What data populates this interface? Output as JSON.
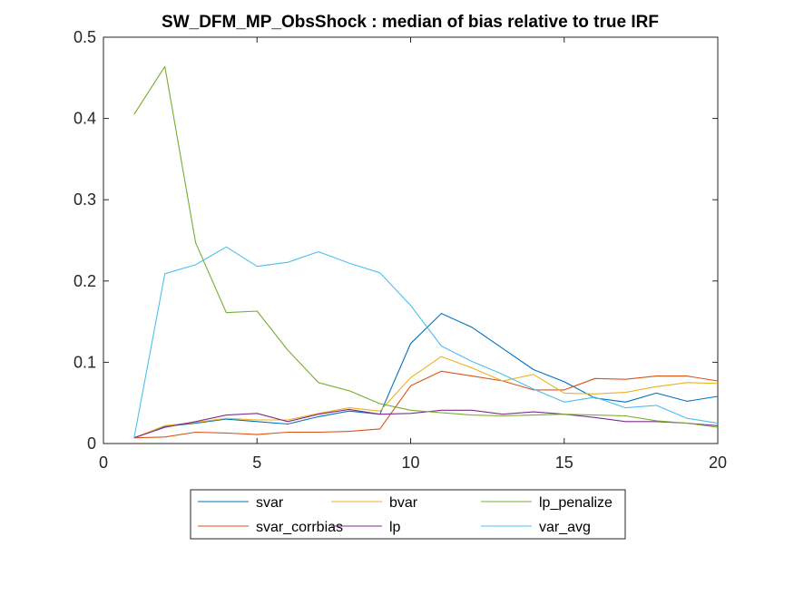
{
  "chart_data": {
    "type": "line",
    "title": "SW_DFM_MP_ObsShock : median of bias relative to true IRF",
    "xlabel": "",
    "ylabel": "",
    "xlim": [
      0,
      20
    ],
    "ylim": [
      0,
      0.5
    ],
    "xticks": [
      "0",
      "5",
      "10",
      "15",
      "20"
    ],
    "yticks": [
      "0",
      "0.1",
      "0.2",
      "0.3",
      "0.4",
      "0.5"
    ],
    "x": [
      1,
      2,
      3,
      4,
      5,
      6,
      7,
      8,
      9,
      10,
      11,
      12,
      13,
      14,
      15,
      16,
      17,
      18,
      19,
      20
    ],
    "grid": false,
    "legend_position": "bottom-outside",
    "series": [
      {
        "name": "svar",
        "color": "#0072BD",
        "values": [
          0.007,
          0.021,
          0.025,
          0.03,
          0.027,
          0.024,
          0.033,
          0.04,
          0.036,
          0.123,
          0.16,
          0.143,
          0.117,
          0.091,
          0.076,
          0.056,
          0.051,
          0.062,
          0.052,
          0.058
        ]
      },
      {
        "name": "svar_corrbias",
        "color": "#D95319",
        "values": [
          0.007,
          0.008,
          0.014,
          0.013,
          0.011,
          0.014,
          0.014,
          0.015,
          0.018,
          0.071,
          0.089,
          0.083,
          0.077,
          0.066,
          0.066,
          0.08,
          0.079,
          0.083,
          0.083,
          0.077
        ]
      },
      {
        "name": "bvar",
        "color": "#EDB120",
        "values": [
          0.007,
          0.022,
          0.026,
          0.031,
          0.029,
          0.029,
          0.037,
          0.044,
          0.04,
          0.081,
          0.107,
          0.093,
          0.077,
          0.085,
          0.062,
          0.061,
          0.063,
          0.07,
          0.075,
          0.074
        ]
      },
      {
        "name": "lp",
        "color": "#7E2F8E",
        "values": [
          0.007,
          0.02,
          0.027,
          0.035,
          0.037,
          0.027,
          0.036,
          0.042,
          0.036,
          0.037,
          0.041,
          0.041,
          0.036,
          0.039,
          0.036,
          0.032,
          0.027,
          0.027,
          0.025,
          0.022
        ]
      },
      {
        "name": "lp_penalize",
        "color": "#77AC30",
        "values": [
          0.405,
          0.464,
          0.247,
          0.161,
          0.163,
          0.115,
          0.075,
          0.065,
          0.049,
          0.041,
          0.038,
          0.035,
          0.034,
          0.035,
          0.036,
          0.035,
          0.034,
          0.028,
          0.025,
          0.02
        ]
      },
      {
        "name": "var_avg",
        "color": "#4DBEEE",
        "values": [
          0.007,
          0.209,
          0.22,
          0.242,
          0.218,
          0.223,
          0.236,
          0.222,
          0.21,
          0.17,
          0.12,
          0.101,
          0.085,
          0.067,
          0.051,
          0.057,
          0.044,
          0.047,
          0.031,
          0.025
        ]
      }
    ],
    "legend_order": [
      "svar",
      "bvar",
      "lp_penalize",
      "svar_corrbias",
      "lp",
      "var_avg"
    ]
  }
}
